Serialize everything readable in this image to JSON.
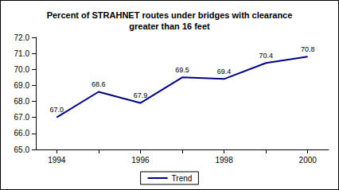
{
  "chart_data": {
    "type": "line",
    "title": "Percent of STRAHNET routes under bridges with clearance\ngreater than 16 feet",
    "categories": [
      "1994",
      null,
      "1996",
      null,
      "1998",
      null,
      "2000"
    ],
    "series": [
      {
        "name": "Trend",
        "color": "#000080",
        "values": [
          67.0,
          68.6,
          67.9,
          69.5,
          69.4,
          70.4,
          70.8
        ],
        "value_labels": [
          "67.0",
          "68.6",
          "67.9",
          "69.5",
          "69.4",
          "70.4",
          "70.8"
        ]
      }
    ],
    "ylim": [
      65,
      72
    ],
    "yticks": [
      {
        "value": 65,
        "label": "65.0"
      },
      {
        "value": 66,
        "label": "66.0"
      },
      {
        "value": 67,
        "label": "67.0"
      },
      {
        "value": 68,
        "label": "68.0"
      },
      {
        "value": 69,
        "label": "69.0"
      },
      {
        "value": 70,
        "label": "70.0"
      },
      {
        "value": 71,
        "label": "71.0"
      },
      {
        "value": 72,
        "label": "72.0"
      }
    ],
    "grid": false,
    "legend": "bottom",
    "data_labels": true
  }
}
